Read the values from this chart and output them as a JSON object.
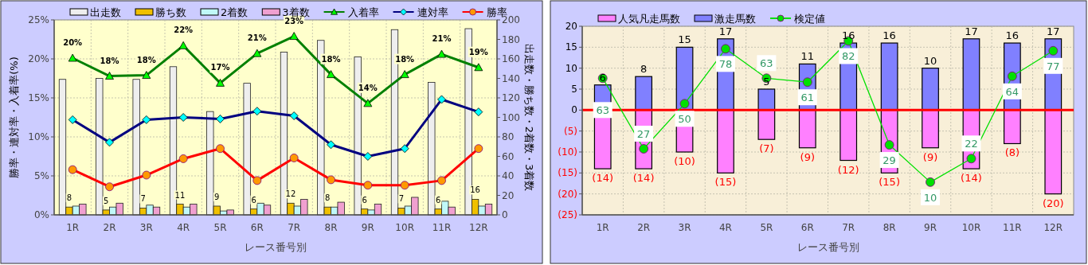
{
  "chart_data": [
    {
      "type": "bar",
      "categories": [
        "1R",
        "2R",
        "3R",
        "4R",
        "5R",
        "6R",
        "7R",
        "8R",
        "9R",
        "10R",
        "11R",
        "12R"
      ],
      "xlabel": "レース番号別",
      "ylabel": "勝率・連対率・入着率(%)",
      "y2label": "出走数・勝ち数・2着数・3着数",
      "ylim": [
        0,
        25
      ],
      "yticks": [
        {
          "value": 0,
          "label": "0%"
        },
        {
          "value": 5,
          "label": "5%"
        },
        {
          "value": 10,
          "label": "10%"
        },
        {
          "value": 15,
          "label": "15%"
        },
        {
          "value": 20,
          "label": "20%"
        },
        {
          "value": 25,
          "label": "25%"
        }
      ],
      "y2lim": [
        0,
        200
      ],
      "y2ticks": [
        0,
        20,
        40,
        60,
        80,
        100,
        120,
        140,
        160,
        180,
        200
      ],
      "grid": true,
      "legend": "top",
      "series": [
        {
          "name": "出走数",
          "color": "#eeeeee",
          "axis": "y2",
          "values": [
            139,
            140,
            139,
            152,
            106,
            135,
            167,
            179,
            162,
            190,
            136,
            191
          ]
        },
        {
          "name": "勝ち数",
          "color": "#f0c000",
          "axis": "y2",
          "values": [
            8,
            5,
            7,
            11,
            9,
            6,
            12,
            8,
            6,
            7,
            6,
            16
          ],
          "value_labels": [
            "8",
            "5",
            "7",
            "11",
            "9",
            "6",
            "12",
            "8",
            "6",
            "7",
            "6",
            "16"
          ]
        },
        {
          "name": "2着数",
          "color": "#c0f8f8",
          "axis": "y2",
          "values": [
            9,
            8,
            10,
            8,
            4,
            12,
            9,
            8,
            5,
            9,
            14,
            9
          ]
        },
        {
          "name": "3着数",
          "color": "#f0a0d0",
          "axis": "y2",
          "values": [
            11,
            12,
            8,
            11,
            5,
            10,
            16,
            13,
            11,
            18,
            8,
            11
          ]
        },
        {
          "name": "入着率",
          "type": "line",
          "color": "#008000",
          "marker": "triangle",
          "values": [
            20.1,
            17.8,
            17.9,
            21.7,
            16.9,
            20.7,
            22.9,
            18.0,
            14.3,
            18.0,
            20.6,
            18.9
          ],
          "value_labels": [
            "20%",
            "18%",
            "18%",
            "22%",
            "17%",
            "21%",
            "23%",
            "18%",
            "14%",
            "18%",
            "21%",
            "19%"
          ]
        },
        {
          "name": "連対率",
          "type": "line",
          "color": "#000080",
          "marker": "diamond",
          "values": [
            12.2,
            9.3,
            12.2,
            12.5,
            12.3,
            13.3,
            12.7,
            9.0,
            7.5,
            8.5,
            14.8,
            13.2
          ]
        },
        {
          "name": "勝率",
          "type": "line",
          "color": "#ff0000",
          "marker": "circle",
          "values": [
            5.8,
            3.6,
            5.1,
            7.2,
            8.5,
            4.4,
            7.3,
            4.5,
            3.8,
            3.8,
            4.4,
            8.5
          ]
        }
      ]
    },
    {
      "type": "bar",
      "stacked": true,
      "categories": [
        "1R",
        "2R",
        "3R",
        "4R",
        "5R",
        "6R",
        "7R",
        "8R",
        "9R",
        "10R",
        "11R",
        "12R"
      ],
      "xlabel": "レース番号別",
      "ylim": [
        -25,
        20
      ],
      "yticks": [
        {
          "value": -25,
          "label": "(25)"
        },
        {
          "value": -20,
          "label": "(20)"
        },
        {
          "value": -15,
          "label": "(15)"
        },
        {
          "value": -10,
          "label": "(10)"
        },
        {
          "value": -5,
          "label": "(5)"
        },
        0,
        5,
        10,
        15,
        20
      ],
      "y2lim": [
        -6.7,
        89.5
      ],
      "grid": true,
      "legend": "top",
      "ref_lines": [
        {
          "axis": "y",
          "value": 0,
          "color": "#ff0000"
        }
      ],
      "series": [
        {
          "name": "人気凡走馬数",
          "color": "#ff80ff",
          "values": [
            -14,
            -14,
            -10,
            -15,
            -7,
            -9,
            -12,
            -15,
            -9,
            -14,
            -8,
            -20
          ],
          "value_labels": [
            "(14)",
            "(14)",
            "(10)",
            "(15)",
            "(7)",
            "(9)",
            "(12)",
            "(15)",
            "(9)",
            "(14)",
            "(8)",
            "(20)"
          ]
        },
        {
          "name": "激走馬数",
          "color": "#8080ff",
          "values": [
            6,
            8,
            15,
            17,
            5,
            11,
            16,
            16,
            10,
            17,
            16,
            17
          ],
          "value_labels": [
            "6",
            "8",
            "15",
            "17",
            "5",
            "11",
            "16",
            "16",
            "10",
            "17",
            "16",
            "17"
          ]
        },
        {
          "name": "検定値",
          "type": "line",
          "axis": "y2",
          "color": "#00e000",
          "marker": "circle",
          "values": [
            63,
            27,
            50,
            78,
            63,
            61,
            82,
            29,
            10,
            22,
            64,
            77
          ],
          "value_labels": [
            "63",
            "27",
            "50",
            "78",
            "63",
            "61",
            "82",
            "29",
            "10",
            "22",
            "64",
            "77"
          ]
        }
      ]
    }
  ]
}
